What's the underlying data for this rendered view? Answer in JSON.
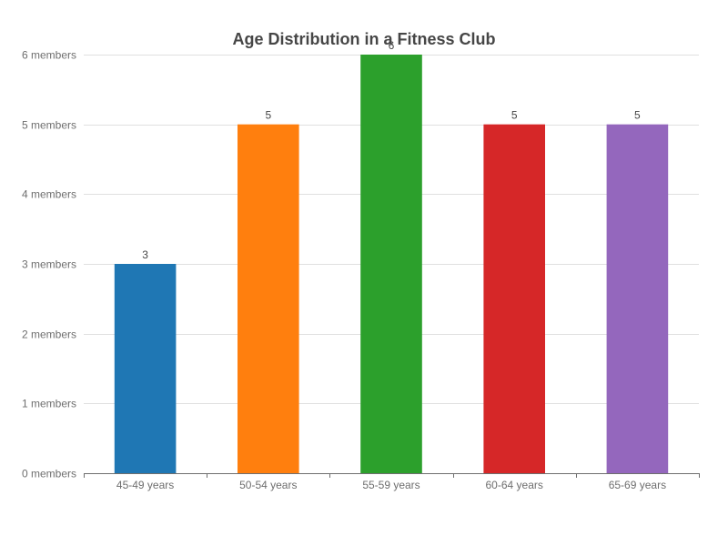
{
  "chart_data": {
    "type": "bar",
    "title": "Age Distribution in a Fitness Club",
    "xlabel": "",
    "ylabel": "",
    "categories": [
      "45-49 years",
      "50-54 years",
      "55-59 years",
      "60-64 years",
      "65-69 years"
    ],
    "values": [
      3,
      5,
      6,
      5,
      5
    ],
    "value_labels": [
      "3",
      "5",
      "6",
      "5",
      "5"
    ],
    "colors": [
      "#1f77b4",
      "#ff7f0e",
      "#2ca02c",
      "#d62728",
      "#9467bd"
    ],
    "ylim": [
      0,
      6
    ],
    "yticks": [
      0,
      1,
      2,
      3,
      4,
      5,
      6
    ],
    "ytick_labels": [
      "0 members",
      "1 members",
      "2 members",
      "3 members",
      "4 members",
      "5 members",
      "6 members"
    ],
    "grid": true,
    "legend": "none"
  }
}
